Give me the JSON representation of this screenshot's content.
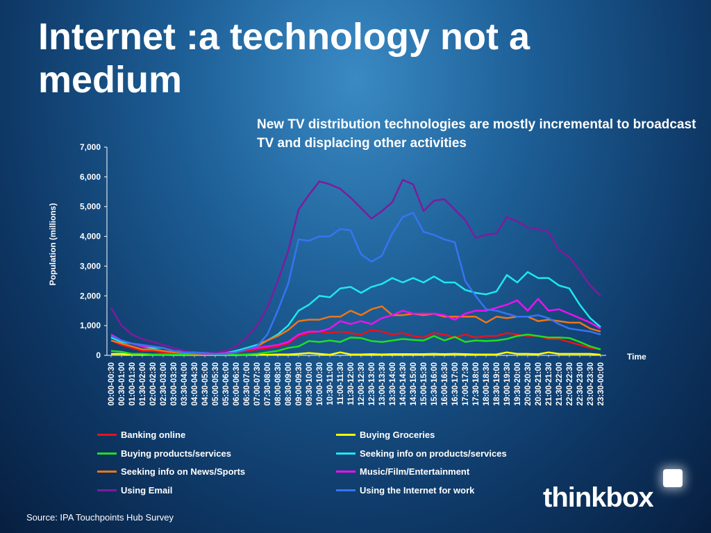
{
  "slide": {
    "title": "Internet :a technology not a medium",
    "subtitle": "New TV distribution technologies are mostly incremental to broadcast TV and displacing other activities",
    "source": "Source: IPA Touchpoints Hub Survey",
    "logo_text": "thinkbox"
  },
  "chart_data": {
    "type": "line",
    "title": "",
    "xlabel": "Time",
    "ylabel": "Population (millions)",
    "ylim": [
      0,
      7000
    ],
    "yticks": [
      "0",
      "1,000",
      "2,000",
      "3,000",
      "4,000",
      "5,000",
      "6,000",
      "7,000"
    ],
    "grid": false,
    "legend_position": "bottom",
    "categories": [
      "00:00-00:30",
      "00:30-01:00",
      "01:00-01:30",
      "01:30-02:00",
      "02:00-02:30",
      "02:30-03:00",
      "03:00-03:30",
      "03:30-04:00",
      "04:00-04:30",
      "04:30-05:00",
      "05:00-05:30",
      "05:30-06:00",
      "06:00-06:30",
      "06:30-07:00",
      "07:00-07:30",
      "07:30-08:00",
      "08:00-08:30",
      "08:30-09:00",
      "09:00-09:30",
      "09:30-10:00",
      "10:00-10:30",
      "10:30-11:00",
      "11:00-11:30",
      "11:30-12:00",
      "12:00-12:30",
      "12:30-13:00",
      "13:00-13:30",
      "13:30-14:00",
      "14:00-14:30",
      "14:30-15:00",
      "15:00-15:30",
      "15:30-16:00",
      "16:00-16:30",
      "16:30-17:00",
      "17:00-17:30",
      "17:30-18:00",
      "18:00-18:30",
      "18:30-19:00",
      "19:00-19:30",
      "19:30-20:00",
      "20:00-20:30",
      "20:30-21:00",
      "21:00-21:30",
      "21:30-22:00",
      "22:00-22:30",
      "22:30-23:00",
      "23:00-23:30",
      "23:30-00:00"
    ],
    "series": [
      {
        "name": "Banking online",
        "color": "#e8121c",
        "values": [
          500,
          350,
          250,
          150,
          150,
          100,
          50,
          50,
          50,
          50,
          20,
          50,
          100,
          150,
          200,
          250,
          300,
          400,
          650,
          750,
          800,
          750,
          800,
          750,
          700,
          850,
          800,
          700,
          750,
          650,
          600,
          750,
          700,
          600,
          700,
          600,
          650,
          650,
          750,
          700,
          650,
          650,
          550,
          550,
          450,
          350,
          250,
          200
        ]
      },
      {
        "name": "Buying Groceries",
        "color": "#ffff00",
        "values": [
          50,
          50,
          20,
          20,
          20,
          20,
          10,
          10,
          10,
          10,
          10,
          10,
          10,
          20,
          20,
          20,
          30,
          30,
          50,
          80,
          50,
          20,
          100,
          30,
          30,
          40,
          30,
          40,
          40,
          40,
          40,
          50,
          40,
          50,
          40,
          30,
          30,
          30,
          100,
          50,
          50,
          40,
          100,
          50,
          50,
          50,
          50,
          20
        ]
      },
      {
        "name": "Buying products/services",
        "color": "#1ee01e",
        "values": [
          150,
          120,
          50,
          50,
          30,
          30,
          20,
          20,
          20,
          20,
          20,
          20,
          20,
          30,
          50,
          100,
          150,
          250,
          300,
          480,
          450,
          500,
          450,
          600,
          580,
          480,
          450,
          500,
          550,
          520,
          500,
          650,
          500,
          620,
          450,
          500,
          480,
          500,
          550,
          650,
          700,
          650,
          600,
          600,
          580,
          450,
          300,
          200
        ]
      },
      {
        "name": "Seeking info on products/services",
        "color": "#1ee8f0",
        "values": [
          600,
          450,
          400,
          300,
          250,
          250,
          150,
          120,
          100,
          80,
          50,
          80,
          150,
          250,
          350,
          500,
          700,
          1000,
          1500,
          1700,
          2000,
          1950,
          2250,
          2300,
          2100,
          2300,
          2400,
          2600,
          2450,
          2600,
          2450,
          2650,
          2450,
          2450,
          2200,
          2100,
          2050,
          2150,
          2700,
          2450,
          2800,
          2600,
          2600,
          2350,
          2250,
          1700,
          1250,
          950
        ]
      },
      {
        "name": "Seeking info on News/Sports",
        "color": "#ee7616",
        "values": [
          500,
          400,
          300,
          200,
          200,
          150,
          100,
          80,
          50,
          50,
          50,
          50,
          100,
          200,
          300,
          500,
          650,
          850,
          1150,
          1200,
          1200,
          1300,
          1300,
          1500,
          1350,
          1550,
          1650,
          1350,
          1350,
          1400,
          1350,
          1400,
          1300,
          1300,
          1300,
          1300,
          1100,
          1300,
          1250,
          1300,
          1300,
          1150,
          1200,
          1150,
          1100,
          1100,
          900,
          800
        ]
      },
      {
        "name": "Music/Film/Entertainment",
        "color": "#ee10f0",
        "values": [
          700,
          500,
          400,
          300,
          300,
          250,
          150,
          100,
          80,
          50,
          50,
          80,
          100,
          200,
          250,
          300,
          350,
          450,
          700,
          800,
          800,
          900,
          1150,
          1050,
          1150,
          1050,
          1250,
          1350,
          1500,
          1400,
          1400,
          1400,
          1350,
          1200,
          1400,
          1500,
          1500,
          1600,
          1700,
          1850,
          1500,
          1900,
          1500,
          1550,
          1400,
          1250,
          1100,
          900
        ]
      },
      {
        "name": "Using Email",
        "color": "#7d1c9c",
        "values": [
          1600,
          1000,
          700,
          550,
          450,
          350,
          250,
          150,
          100,
          100,
          100,
          150,
          300,
          600,
          1000,
          1600,
          2500,
          3500,
          4900,
          5400,
          5850,
          5750,
          5600,
          5300,
          4950,
          4600,
          4850,
          5150,
          5900,
          5750,
          4850,
          5200,
          5250,
          4900,
          4550,
          3950,
          4050,
          4100,
          4650,
          4500,
          4300,
          4250,
          4150,
          3550,
          3300,
          2850,
          2350,
          2000
        ]
      },
      {
        "name": "Using the Internet for work",
        "color": "#3674f2",
        "values": [
          650,
          500,
          400,
          350,
          300,
          250,
          150,
          100,
          100,
          80,
          50,
          50,
          100,
          200,
          300,
          700,
          1500,
          2400,
          3900,
          3850,
          4000,
          4000,
          4250,
          4200,
          3400,
          3150,
          3350,
          4100,
          4650,
          4800,
          4150,
          4050,
          3900,
          3800,
          2500,
          2000,
          1550,
          1500,
          1400,
          1300,
          1300,
          1350,
          1250,
          1050,
          900,
          850,
          800,
          700
        ]
      }
    ]
  }
}
